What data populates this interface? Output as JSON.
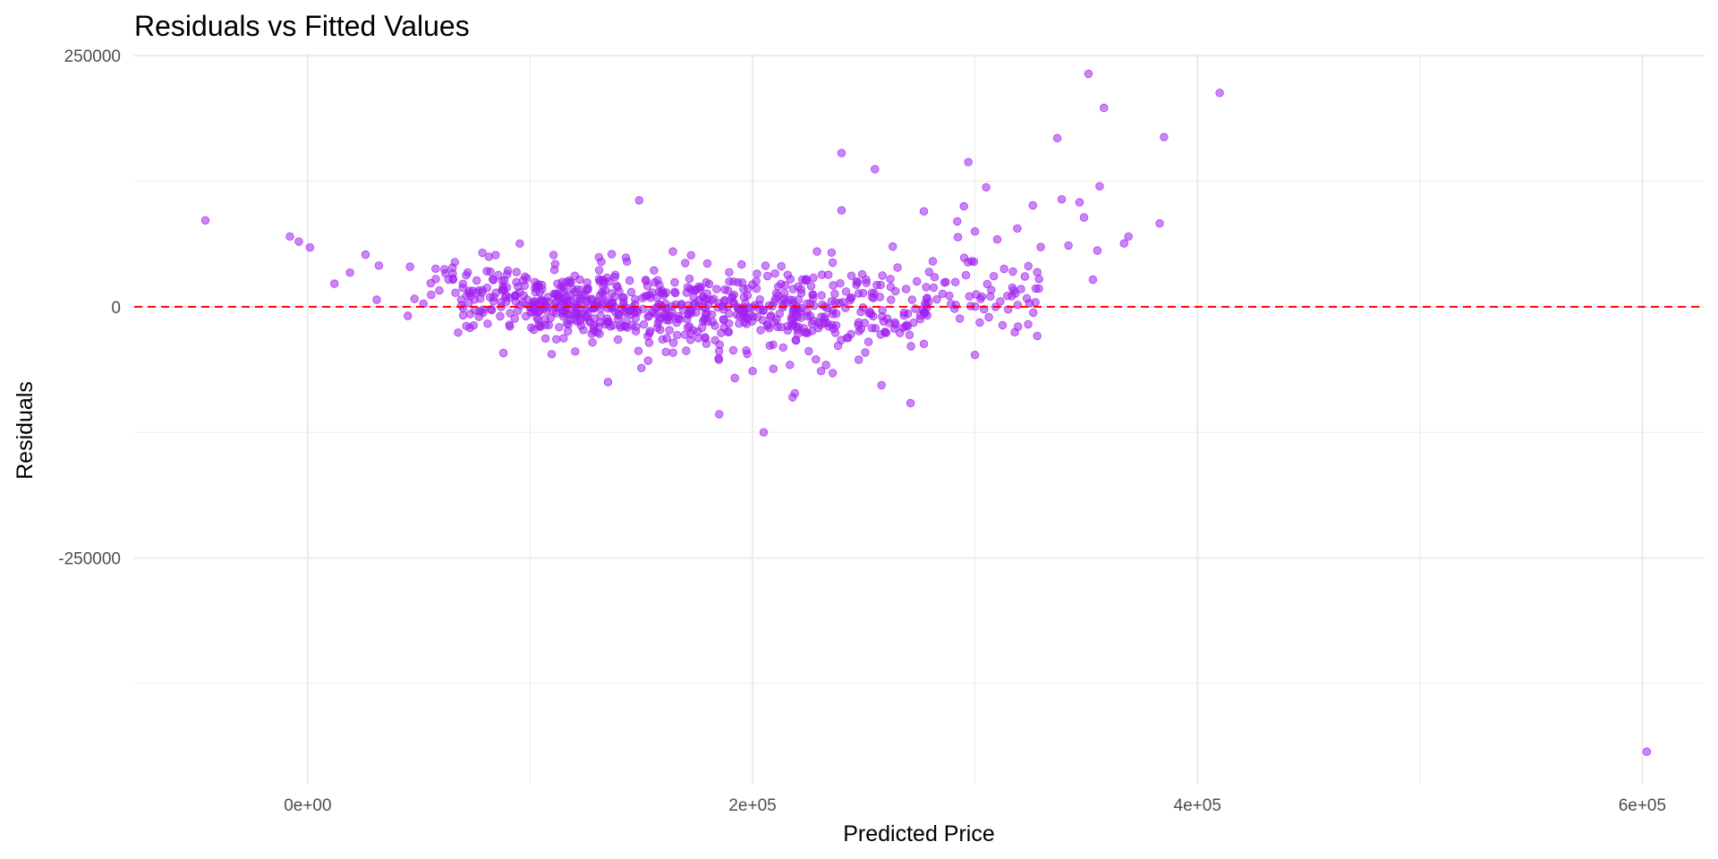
{
  "chart_data": {
    "type": "scatter",
    "title": "Residuals vs Fitted Values",
    "xlabel": "Predicted Price",
    "ylabel": "Residuals",
    "xlim": [
      -78000,
      628000
    ],
    "ylim": [
      -475000,
      252000
    ],
    "x_major_ticks": [
      0,
      200000,
      400000,
      600000
    ],
    "x_tick_labels": [
      "0e+00",
      "2e+05",
      "4e+05",
      "6e+05"
    ],
    "x_minor_ticks": [
      100000,
      300000,
      500000
    ],
    "y_major_ticks": [
      250000,
      0,
      -250000
    ],
    "y_tick_labels": [
      "250000",
      "0",
      "-250000"
    ],
    "y_minor_ticks": [
      125000,
      -125000,
      -375000
    ],
    "grid": true,
    "legend": "none",
    "reference_line": {
      "y": 0,
      "style": "dashed",
      "color": "#ff0000"
    },
    "colors": {
      "points": "#a020f0",
      "grid": "#ebebeb"
    },
    "highlighted_points": [
      [
        -46000,
        86000
      ],
      [
        -8000,
        70000
      ],
      [
        -4000,
        65000
      ],
      [
        1000,
        59000
      ],
      [
        12000,
        23000
      ],
      [
        19000,
        34000
      ],
      [
        26000,
        52000
      ],
      [
        31000,
        7000
      ],
      [
        32000,
        41000
      ],
      [
        45000,
        -9000
      ],
      [
        46000,
        40000
      ],
      [
        48000,
        8000
      ],
      [
        52000,
        3000
      ],
      [
        149000,
        106000
      ],
      [
        240000,
        153000
      ],
      [
        255000,
        137000
      ],
      [
        240000,
        96000
      ],
      [
        236000,
        44000
      ],
      [
        263000,
        60000
      ],
      [
        277000,
        95000
      ],
      [
        295000,
        100000
      ],
      [
        297000,
        144000
      ],
      [
        305000,
        119000
      ],
      [
        292000,
        85000
      ],
      [
        300000,
        75000
      ],
      [
        310000,
        67000
      ],
      [
        319000,
        78000
      ],
      [
        326000,
        101000
      ],
      [
        337000,
        168000
      ],
      [
        339000,
        107000
      ],
      [
        342000,
        61000
      ],
      [
        347000,
        104000
      ],
      [
        349000,
        89000
      ],
      [
        351000,
        232000
      ],
      [
        356000,
        120000
      ],
      [
        358000,
        198000
      ],
      [
        353000,
        27000
      ],
      [
        355000,
        56000
      ],
      [
        385000,
        169000
      ],
      [
        383000,
        83000
      ],
      [
        369000,
        70000
      ],
      [
        367000,
        63000
      ],
      [
        410000,
        213000
      ],
      [
        602000,
        -443000
      ],
      [
        205000,
        -125000
      ],
      [
        185000,
        -107000
      ],
      [
        271000,
        -96000
      ],
      [
        219000,
        -86000
      ],
      [
        218000,
        -90000
      ],
      [
        258000,
        -78000
      ],
      [
        236000,
        -66000
      ],
      [
        200000,
        -64000
      ],
      [
        150000,
        -61000
      ],
      [
        135000,
        -75000
      ],
      [
        88000,
        -46000
      ],
      [
        300000,
        -48000
      ],
      [
        233000,
        -58000
      ],
      [
        192000,
        -71000
      ]
    ],
    "bulk_bands": [
      {
        "x": [
          66000,
          100000
        ],
        "y": [
          -30000,
          50000
        ],
        "count": 90
      },
      {
        "x": [
          100000,
          140000
        ],
        "y": [
          -40000,
          45000
        ],
        "count": 200
      },
      {
        "x": [
          140000,
          200000
        ],
        "y": [
          -50000,
          40000
        ],
        "count": 230
      },
      {
        "x": [
          200000,
          240000
        ],
        "y": [
          -55000,
          40000
        ],
        "count": 140
      },
      {
        "x": [
          240000,
          280000
        ],
        "y": [
          -45000,
          40000
        ],
        "count": 90
      },
      {
        "x": [
          280000,
          330000
        ],
        "y": [
          -30000,
          60000
        ],
        "count": 60
      },
      {
        "x": [
          55000,
          66000
        ],
        "y": [
          5000,
          40000
        ],
        "count": 12
      }
    ]
  }
}
